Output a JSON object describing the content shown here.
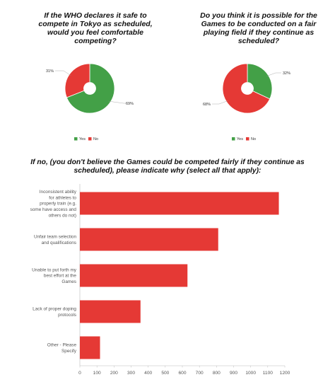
{
  "chart_data": [
    {
      "type": "pie",
      "title": "If the WHO declares it safe to compete in Tokyo as scheduled, would you feel comfortable competing?",
      "categories": [
        "Yes",
        "No"
      ],
      "values": [
        69,
        31
      ],
      "data_labels": [
        "69%",
        "31%"
      ],
      "colors": [
        "#43a047",
        "#e53935"
      ],
      "legend": "bottom"
    },
    {
      "type": "pie",
      "title": "Do you think it is possible for the Games to be conducted on a fair playing field if they continue as scheduled?",
      "categories": [
        "Yes",
        "No"
      ],
      "values": [
        32,
        68
      ],
      "data_labels": [
        "32%",
        "68%"
      ],
      "colors": [
        "#43a047",
        "#e53935"
      ],
      "legend": "bottom"
    },
    {
      "type": "bar",
      "orientation": "horizontal",
      "title": "If no, (you don't believe the Games could be competed fairly if they continue as scheduled), please indicate why (select all that apply):",
      "categories": [
        "Inconsistent ability for athletes to properly train (e.g. some have access and others do not)",
        "Unfair team selection and qualifications",
        "Unable to put forth my best effort at the Games",
        "Lack of proper doping protocols",
        "Other - Please Specify"
      ],
      "category_lines": [
        [
          "Inconsistent ability",
          "for athletes to",
          "properly train (e.g.",
          "some have access and",
          "others do not)"
        ],
        [
          "Unfair team selection",
          "and qualifications"
        ],
        [
          "Unable to put forth my",
          "best effort at the",
          "Games"
        ],
        [
          "Lack of proper doping",
          "protocols"
        ],
        [
          "Other - Please",
          "Specify"
        ]
      ],
      "values": [
        1165,
        810,
        630,
        355,
        118
      ],
      "xlim": [
        0,
        1200
      ],
      "xticks": [
        0,
        100,
        200,
        300,
        400,
        500,
        600,
        700,
        800,
        900,
        1000,
        1100,
        1200
      ],
      "color": "#e53935",
      "grid": false
    }
  ]
}
